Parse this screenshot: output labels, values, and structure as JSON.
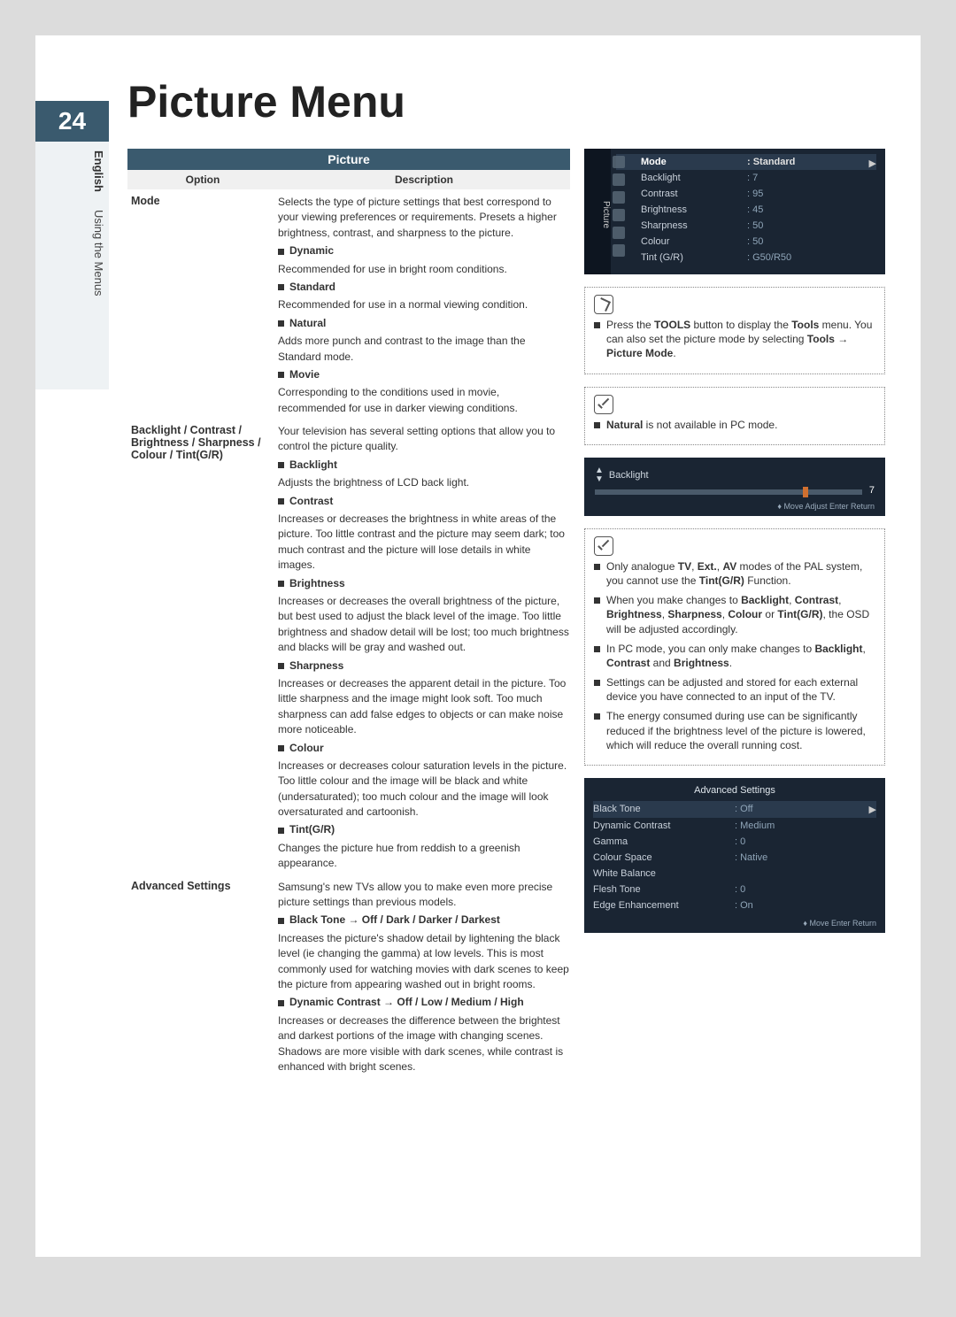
{
  "page_number": "24",
  "side": {
    "lang": "English",
    "section": "Using the Menus"
  },
  "title": "Picture Menu",
  "table": {
    "header": "Picture",
    "col_option": "Option",
    "col_desc": "Description",
    "mode": {
      "label": "Mode",
      "intro": "Selects the type of picture settings that best correspond to your viewing preferences or requirements. Presets a higher brightness, contrast, and sharpness to the picture.",
      "dynamic_l": "Dynamic",
      "dynamic_d": "Recommended for use in bright room conditions.",
      "standard_l": "Standard",
      "standard_d": "Recommended for use in a normal viewing condition.",
      "natural_l": "Natural",
      "natural_d": "Adds more punch and contrast to the image than the Standard mode.",
      "movie_l": "Movie",
      "movie_d": "Corresponding to the conditions used in movie, recommended for use in darker viewing conditions."
    },
    "quality": {
      "label": "Backlight / Contrast / Brightness / Sharpness / Colour / Tint(G/R)",
      "intro": "Your television has several setting options that allow you to control the picture quality.",
      "backlight_l": "Backlight",
      "backlight_d": "Adjusts the brightness of LCD back light.",
      "contrast_l": "Contrast",
      "contrast_d": "Increases or decreases the brightness in white areas of the picture. Too little contrast and the picture may seem dark; too much contrast and the picture will lose details in white images.",
      "brightness_l": "Brightness",
      "brightness_d": "Increases or decreases the overall brightness of the picture, but best used to adjust the black level of the image. Too little brightness and shadow detail will be lost; too much brightness and blacks will be gray and washed out.",
      "sharpness_l": "Sharpness",
      "sharpness_d": "Increases or decreases the apparent detail in the picture. Too little sharpness and the image might look soft. Too much sharpness can add false edges to objects or can make noise more noticeable.",
      "colour_l": "Colour",
      "colour_d": "Increases or decreases colour saturation levels in the picture. Too little colour and the image will be black and white (undersaturated); too much colour and the image will look oversaturated and cartoonish.",
      "tint_l": "Tint(G/R)",
      "tint_d": "Changes the picture hue from reddish to a greenish appearance."
    },
    "adv": {
      "label": "Advanced Settings",
      "intro": "Samsung's new TVs allow you to make even more precise picture settings than previous models.",
      "black_l": "Black Tone → Off / Dark / Darker / Darkest",
      "black_d": "Increases the picture's shadow detail by lightening the black level (ie changing the gamma) at low levels. This is most commonly used for watching movies with dark scenes to keep the picture from appearing washed out in bright rooms.",
      "dyn_l": "Dynamic Contrast → Off / Low / Medium / High",
      "dyn_d": "Increases or decreases the difference between the brightest and darkest portions of the image with changing scenes. Shadows are more visible with dark scenes, while contrast is enhanced with bright scenes."
    }
  },
  "osd_picture": {
    "tab": "Picture",
    "rows": [
      {
        "k": "Mode",
        "v": "Standard",
        "hd": true
      },
      {
        "k": "Backlight",
        "v": ": 7"
      },
      {
        "k": "Contrast",
        "v": ": 95"
      },
      {
        "k": "Brightness",
        "v": ": 45"
      },
      {
        "k": "Sharpness",
        "v": ": 50"
      },
      {
        "k": "Colour",
        "v": ": 50"
      },
      {
        "k": "Tint (G/R)",
        "v": ": G50/R50"
      }
    ]
  },
  "tip_tools_pre": "Press the ",
  "tip_tools_b1": "TOOLS",
  "tip_tools_mid1": " button to display the ",
  "tip_tools_b2": "Tools",
  "tip_tools_mid2": " menu. You can also set the picture mode by selecting ",
  "tip_tools_b3": "Tools → Picture Mode",
  "tip_tools_end": ".",
  "note_natural_b": "Natural",
  "note_natural_t": " is not available in PC mode.",
  "slider": {
    "name": "Backlight",
    "value": "7",
    "foot": "Move    Adjust    Enter    Return"
  },
  "note2": {
    "li1_a": "Only analogue ",
    "li1_b1": "TV",
    "li1_m1": ", ",
    "li1_b2": "Ext.",
    "li1_m2": ", ",
    "li1_b3": "AV",
    "li1_m3": " modes of the PAL system, you cannot use the ",
    "li1_b4": "Tint(G/R)",
    "li1_end": " Function.",
    "li2_a": "When you make changes to ",
    "li2_b": "Backlight",
    "li2_m1": ", ",
    "li2_b2": "Contrast",
    "li2_m2": ", ",
    "li2_b3": "Brightness",
    "li2_m3": ", ",
    "li2_b4": "Sharpness",
    "li2_m4": ", ",
    "li2_b5": "Colour",
    "li2_m5": " or ",
    "li2_b6": "Tint(G/R)",
    "li2_end": ", the OSD will be adjusted accordingly.",
    "li3_a": "In PC mode, you can only make changes to ",
    "li3_b1": "Backlight",
    "li3_m1": ", ",
    "li3_b2": "Contrast",
    "li3_m2": " and ",
    "li3_b3": "Brightness",
    "li3_end": ".",
    "li4": "Settings can be adjusted and stored for each external device you have connected to an input of the TV.",
    "li5": "The energy consumed during use can be significantly reduced if the brightness level of the picture is lowered, which will reduce the overall running cost."
  },
  "osd_adv": {
    "title": "Advanced Settings",
    "rows": [
      {
        "k": "Black Tone",
        "v": ": Off",
        "sel": true
      },
      {
        "k": "Dynamic Contrast",
        "v": ": Medium"
      },
      {
        "k": "Gamma",
        "v": ": 0"
      },
      {
        "k": "Colour Space",
        "v": ": Native"
      },
      {
        "k": "White Balance",
        "v": ""
      },
      {
        "k": "Flesh Tone",
        "v": ": 0"
      },
      {
        "k": "Edge Enhancement",
        "v": ": On"
      }
    ],
    "foot": "Move    Enter    Return"
  }
}
